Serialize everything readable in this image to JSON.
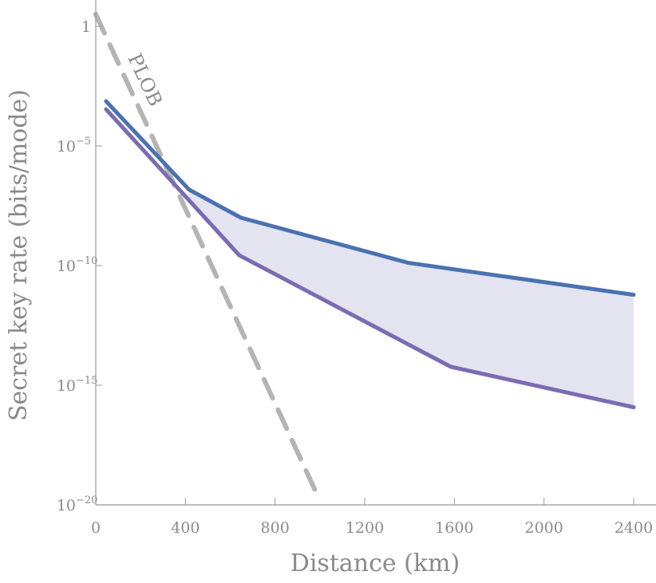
{
  "chart_data": {
    "type": "line",
    "xlabel": "Distance (km)",
    "ylabel": "Secret key rate (bits/mode)",
    "xlim": [
      0,
      2500
    ],
    "ylim": [
      1e-20,
      10
    ],
    "yscale": "log",
    "grid": false,
    "x_ticks": [
      "0",
      "400",
      "800",
      "1200",
      "1600",
      "2000",
      "2400"
    ],
    "x_tick_values": [
      0,
      400,
      800,
      1200,
      1600,
      2000,
      2400
    ],
    "y_ticks": [
      {
        "value": 1,
        "base": "1",
        "exp": ""
      },
      {
        "value": 1e-05,
        "base": "10",
        "exp": "−5"
      },
      {
        "value": 1e-10,
        "base": "10",
        "exp": "−10"
      },
      {
        "value": 1e-15,
        "base": "10",
        "exp": "−15"
      },
      {
        "value": 1e-20,
        "base": "10",
        "exp": "−20"
      }
    ],
    "series": [
      {
        "color": "#4a72b0",
        "style": "solid",
        "points": [
          [
            46,
            0.00074
          ],
          [
            416,
            1.5e-07
          ],
          [
            648,
            1e-08
          ],
          [
            1395,
            1.3e-10
          ],
          [
            2400,
            6e-12
          ]
        ]
      },
      {
        "color": "#7b6bb3",
        "style": "solid",
        "points": [
          [
            46,
            0.00034
          ],
          [
            640,
            2.7e-10
          ],
          [
            1584,
            5.9e-15
          ],
          [
            2400,
            1.2e-16
          ]
        ]
      },
      {
        "name": "PLOB",
        "color": "#b4b4b4",
        "style": "dashed",
        "points": [
          [
            0,
            3.2
          ],
          [
            979,
            4e-20
          ]
        ]
      }
    ],
    "fill_between": {
      "color": "#e4e3f0",
      "x_from": 416
    },
    "annotations": [
      {
        "text": "PLOB"
      }
    ]
  }
}
